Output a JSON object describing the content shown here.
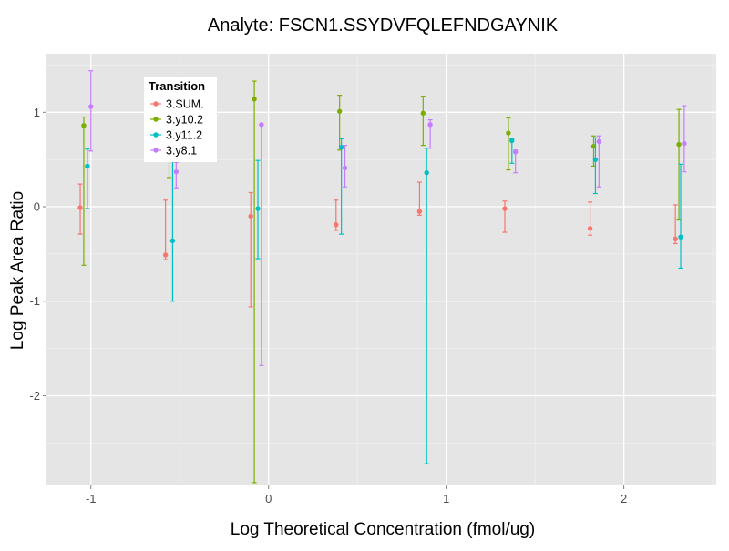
{
  "chart_data": {
    "type": "scatter",
    "title": "Analyte: FSCN1.SSYDVFQLEFNDGAYNIK",
    "xlabel": "Log Theoretical Concentration (fmol/ug)",
    "ylabel": "Log Peak Area Ratio",
    "xlim": [
      -1.25,
      2.52
    ],
    "ylim": [
      -2.95,
      1.62
    ],
    "x_ticks": [
      -1,
      0,
      1,
      2
    ],
    "x_tick_labels": [
      "-1",
      "0",
      "1",
      "2"
    ],
    "y_ticks": [
      -2,
      -1,
      0,
      1
    ],
    "y_tick_labels": [
      "-2",
      "-1",
      "0",
      "1"
    ],
    "grid": true,
    "legend": {
      "title": "Transition",
      "placement": "top-left",
      "entries": [
        "3.SUM.",
        "3.y10.2",
        "3.y11.2",
        "3.y8.1"
      ]
    },
    "series": [
      {
        "name": "3.SUM.",
        "color": "#F8766D",
        "points": [
          {
            "x": -1.06,
            "y": -0.01,
            "ymin": -0.29,
            "ymax": 0.24
          },
          {
            "x": -0.58,
            "y": -0.51,
            "ymin": -0.56,
            "ymax": 0.07
          },
          {
            "x": -0.1,
            "y": -0.1,
            "ymin": -1.06,
            "ymax": 0.15
          },
          {
            "x": 0.38,
            "y": -0.19,
            "ymin": -0.25,
            "ymax": 0.07
          },
          {
            "x": 0.85,
            "y": -0.05,
            "ymin": -0.09,
            "ymax": 0.26
          },
          {
            "x": 1.33,
            "y": -0.02,
            "ymin": -0.27,
            "ymax": 0.06
          },
          {
            "x": 1.81,
            "y": -0.23,
            "ymin": -0.3,
            "ymax": 0.05
          },
          {
            "x": 2.29,
            "y": -0.34,
            "ymin": -0.39,
            "ymax": 0.02
          }
        ]
      },
      {
        "name": "3.y10.2",
        "color": "#7CAE00",
        "points": [
          {
            "x": -1.04,
            "y": 0.86,
            "ymin": -0.62,
            "ymax": 0.95
          },
          {
            "x": -0.56,
            "y": 0.9,
            "ymin": 0.31,
            "ymax": 1.1
          },
          {
            "x": -0.08,
            "y": 1.14,
            "ymin": -2.92,
            "ymax": 1.33
          },
          {
            "x": 0.4,
            "y": 1.01,
            "ymin": 0.6,
            "ymax": 1.18
          },
          {
            "x": 0.87,
            "y": 0.99,
            "ymin": 0.65,
            "ymax": 1.17
          },
          {
            "x": 1.35,
            "y": 0.78,
            "ymin": 0.39,
            "ymax": 0.94
          },
          {
            "x": 1.83,
            "y": 0.64,
            "ymin": 0.43,
            "ymax": 0.75
          },
          {
            "x": 2.31,
            "y": 0.66,
            "ymin": -0.14,
            "ymax": 1.03
          }
        ]
      },
      {
        "name": "3.y11.2",
        "color": "#00BFC4",
        "points": [
          {
            "x": -1.02,
            "y": 0.43,
            "ymin": -0.02,
            "ymax": 0.61
          },
          {
            "x": -0.54,
            "y": -0.36,
            "ymin": -1.0,
            "ymax": 0.52
          },
          {
            "x": -0.06,
            "y": -0.02,
            "ymin": -0.55,
            "ymax": 0.49
          },
          {
            "x": 0.41,
            "y": 0.63,
            "ymin": -0.29,
            "ymax": 0.72
          },
          {
            "x": 0.89,
            "y": 0.36,
            "ymin": -2.72,
            "ymax": 0.62
          },
          {
            "x": 1.37,
            "y": 0.7,
            "ymin": 0.46,
            "ymax": 0.72
          },
          {
            "x": 1.84,
            "y": 0.5,
            "ymin": 0.14,
            "ymax": 0.73
          },
          {
            "x": 2.32,
            "y": -0.32,
            "ymin": -0.65,
            "ymax": 0.45
          }
        ]
      },
      {
        "name": "3.y8.1",
        "color": "#C77CFF",
        "points": [
          {
            "x": -1.0,
            "y": 1.06,
            "ymin": 0.59,
            "ymax": 1.44
          },
          {
            "x": -0.52,
            "y": 0.37,
            "ymin": 0.2,
            "ymax": 0.47
          },
          {
            "x": -0.04,
            "y": 0.87,
            "ymin": -1.68,
            "ymax": 0.87
          },
          {
            "x": 0.43,
            "y": 0.41,
            "ymin": 0.21,
            "ymax": 0.65
          },
          {
            "x": 0.91,
            "y": 0.87,
            "ymin": 0.62,
            "ymax": 0.92
          },
          {
            "x": 1.39,
            "y": 0.58,
            "ymin": 0.36,
            "ymax": 0.6
          },
          {
            "x": 1.86,
            "y": 0.69,
            "ymin": 0.21,
            "ymax": 0.75
          },
          {
            "x": 2.34,
            "y": 0.67,
            "ymin": 0.37,
            "ymax": 1.07
          }
        ]
      }
    ]
  }
}
